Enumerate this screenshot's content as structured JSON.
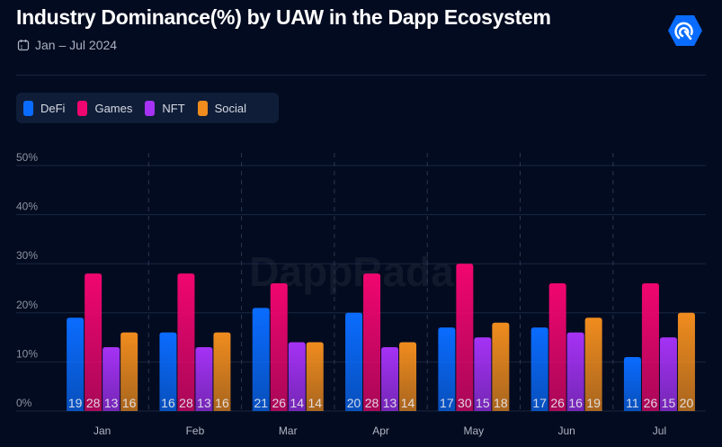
{
  "header": {
    "title": "Industry Dominance(%) by UAW in the Dapp Ecosystem",
    "date_range": "Jan – Jul 2024",
    "calendar_icon": "calendar-icon",
    "logo": "dappradar-logo"
  },
  "watermark": "DappRadar",
  "chart_data": {
    "type": "bar",
    "title": "Industry Dominance(%) by UAW in the Dapp Ecosystem",
    "subtitle": "Jan – Jul 2024",
    "categories": [
      "Jan",
      "Feb",
      "Mar",
      "Apr",
      "May",
      "Jun",
      "Jul"
    ],
    "series": [
      {
        "name": "DeFi",
        "color": "#0a6cff",
        "values": [
          19,
          16,
          21,
          20,
          17,
          17,
          11
        ]
      },
      {
        "name": "Games",
        "color": "#f0066f",
        "values": [
          28,
          28,
          26,
          28,
          30,
          26,
          26
        ]
      },
      {
        "name": "NFT",
        "color": "#a532f5",
        "values": [
          13,
          13,
          14,
          13,
          15,
          16,
          15
        ]
      },
      {
        "name": "Social",
        "color": "#f08c1e",
        "values": [
          16,
          16,
          14,
          14,
          18,
          19,
          20
        ]
      }
    ],
    "yticks": [
      "0%",
      "10%",
      "20%",
      "30%",
      "40%",
      "50%"
    ],
    "ylim": [
      0,
      50
    ],
    "grid": true,
    "legend": "top-left",
    "data_labels": true
  }
}
